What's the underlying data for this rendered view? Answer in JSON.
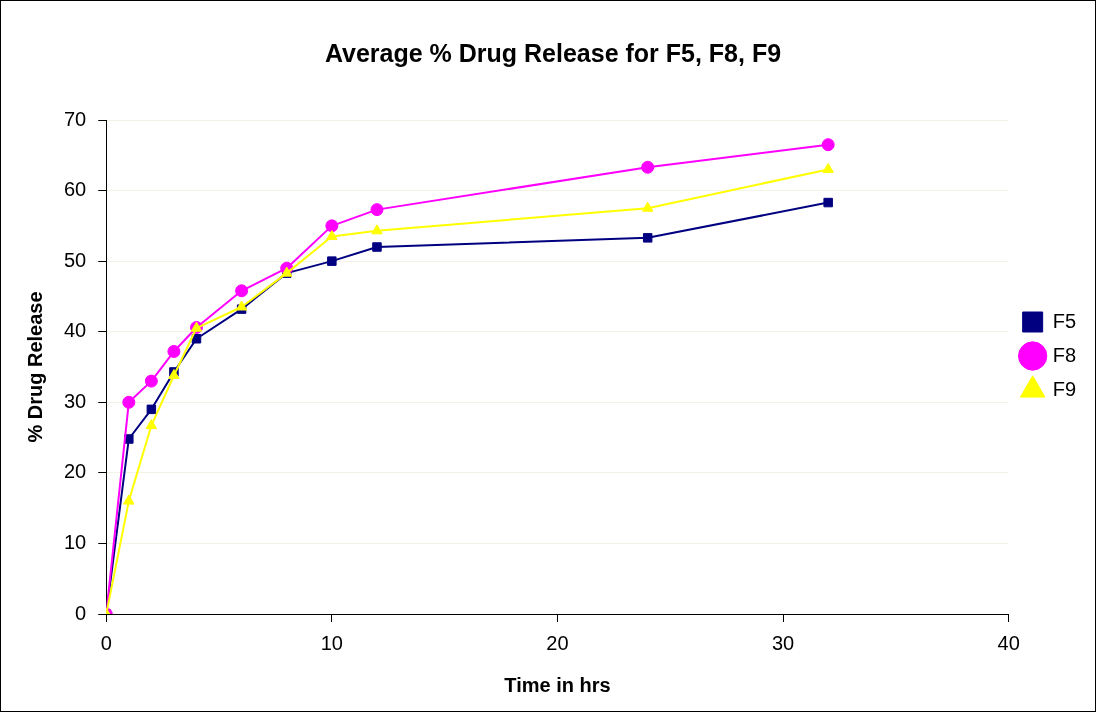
{
  "chart_data": {
    "type": "line",
    "title": "Average % Drug Release for F5, F8, F9",
    "xlabel": "Time in hrs",
    "ylabel": "% Drug Release",
    "x": [
      0,
      1,
      2,
      3,
      4,
      6,
      8,
      10,
      12,
      24,
      32
    ],
    "series": [
      {
        "name": "F5",
        "color": "#000080",
        "marker": "square",
        "values": [
          0,
          24.8,
          29,
          34.3,
          39,
          43.2,
          48.3,
          50,
          52,
          53.3,
          58.3
        ]
      },
      {
        "name": "F8",
        "color": "#ff00ff",
        "marker": "circle",
        "values": [
          0,
          30,
          33,
          37.2,
          40.6,
          45.8,
          49,
          55,
          57.3,
          63.3,
          66.5
        ]
      },
      {
        "name": "F9",
        "color": "#ffff00",
        "marker": "triangle",
        "values": [
          0,
          16,
          26.7,
          33.8,
          40.5,
          43.5,
          48.3,
          53.5,
          54.3,
          57.5,
          63
        ]
      }
    ],
    "xlim": [
      0,
      40
    ],
    "xticks": [
      0,
      10,
      20,
      30,
      40
    ],
    "ylim": [
      0,
      70
    ],
    "yticks": [
      0,
      10,
      20,
      30,
      40,
      50,
      60,
      70
    ],
    "grid": "y",
    "legend": "right"
  }
}
